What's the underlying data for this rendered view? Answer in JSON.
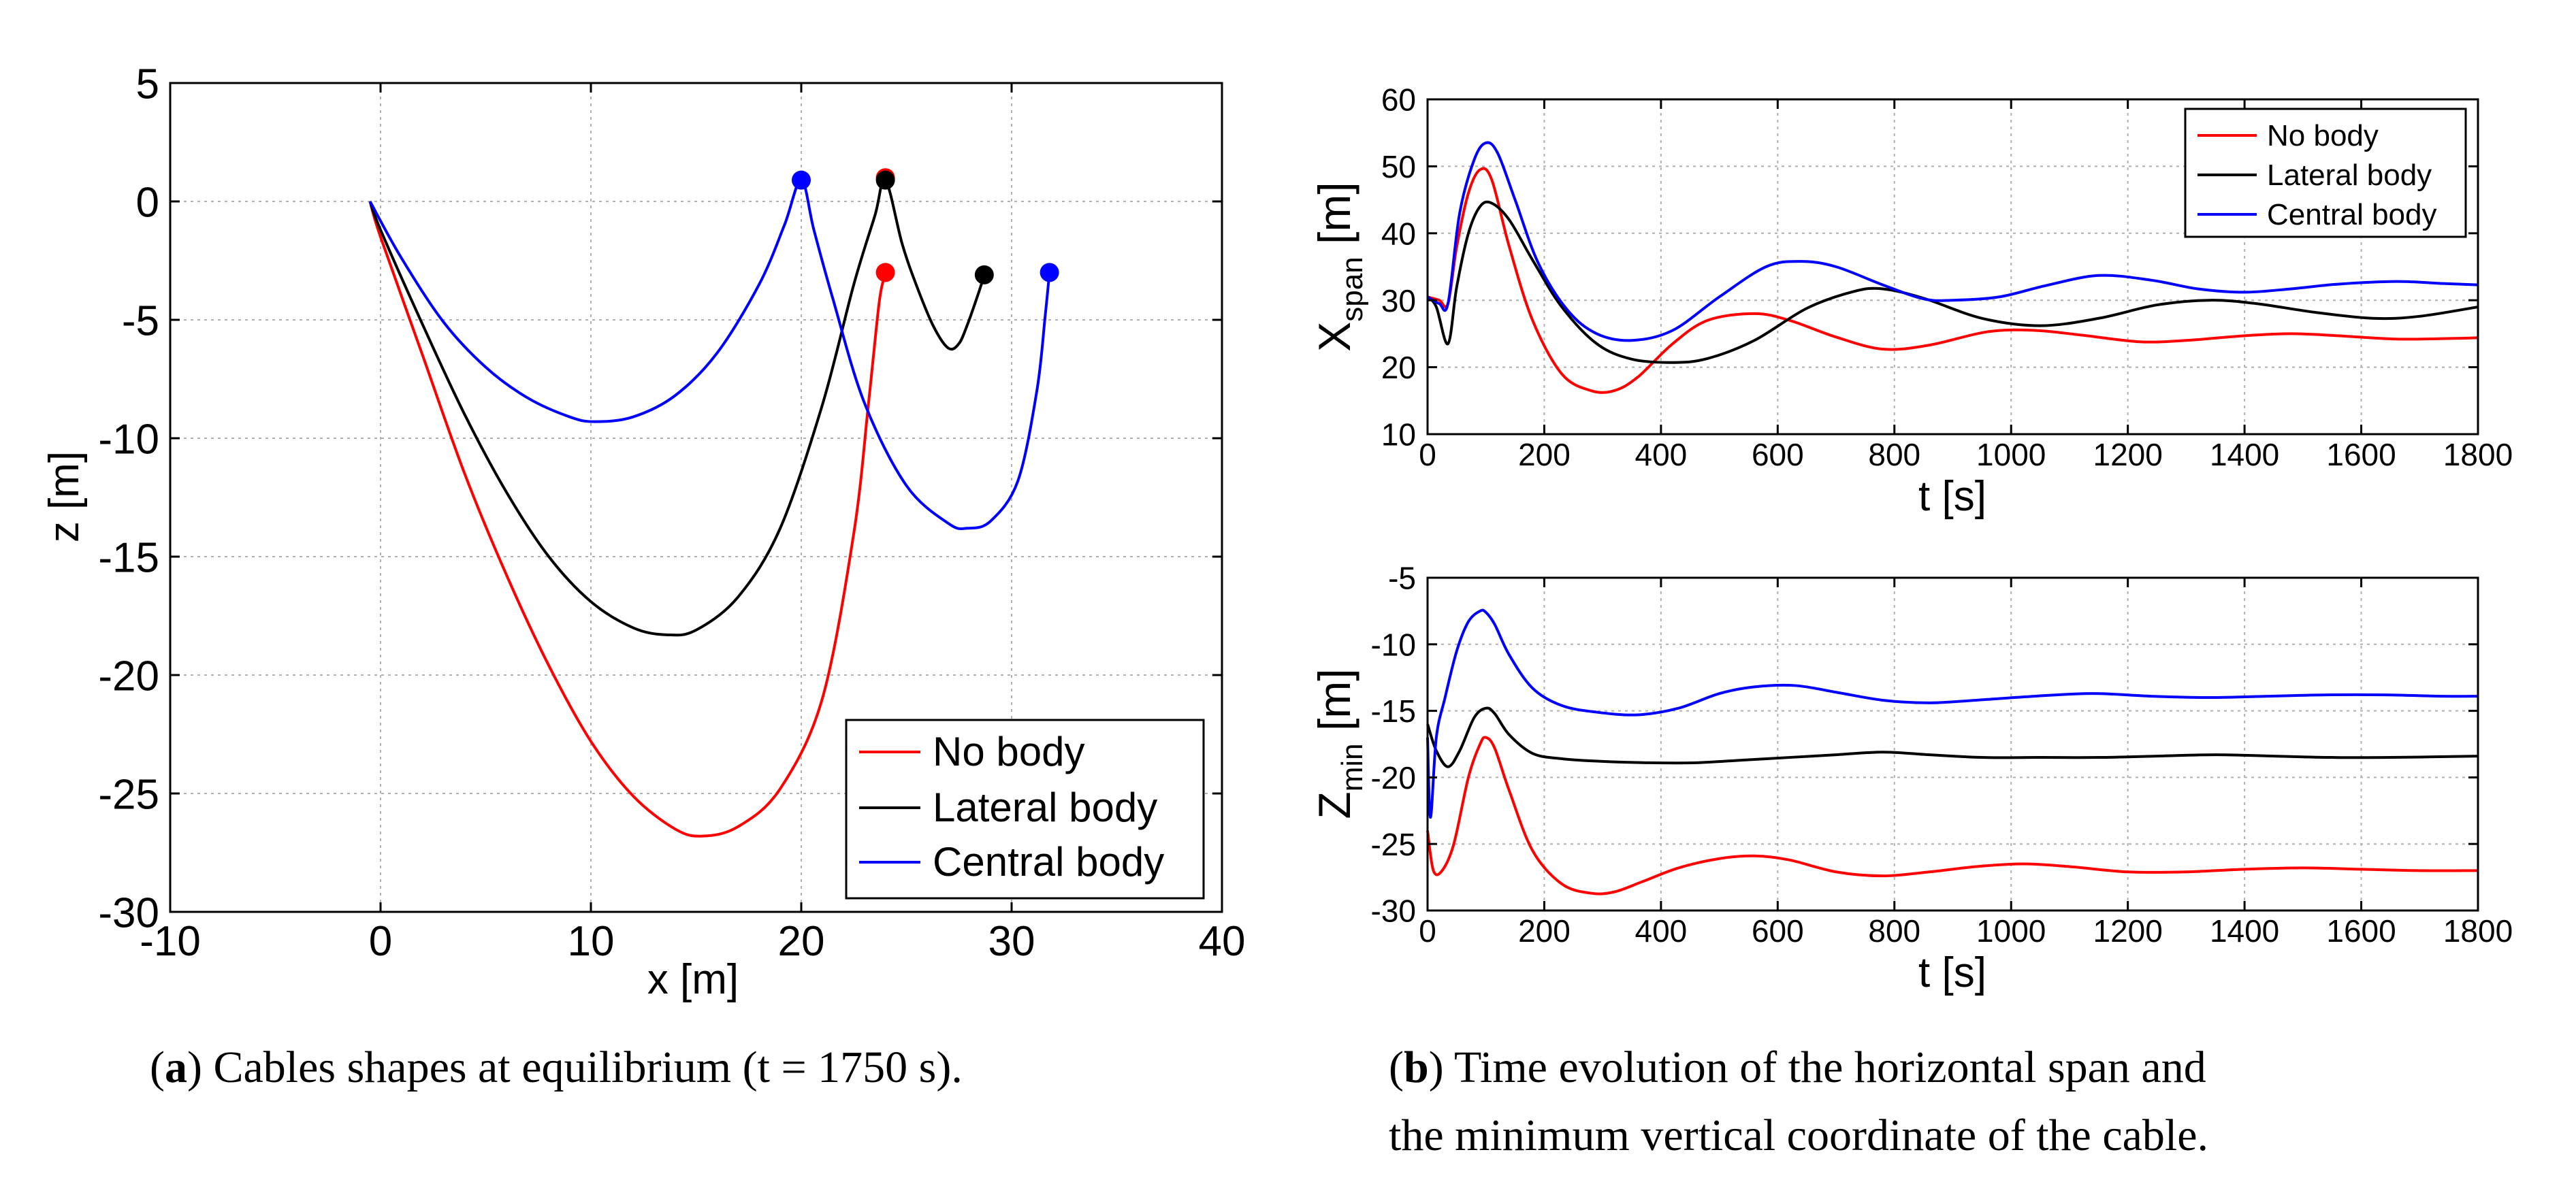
{
  "colors": {
    "no_body": "#ff0000",
    "lateral_body": "#000000",
    "central_body": "#0000ff",
    "grid": "#b0b0b0"
  },
  "captions": {
    "a_label": "(a)",
    "a_letter": "a",
    "a_text": "Cables shapes at equilibrium (t = 1750 s).",
    "b_letter": "b",
    "b_line1": "Time evolution of the horizontal span and",
    "b_line2": "the minimum vertical coordinate of the cable."
  },
  "chart_data": [
    {
      "id": "cable_shapes",
      "type": "line",
      "title": "",
      "xlabel": "x [m]",
      "ylabel": "z [m]",
      "xlim": [
        -10,
        40
      ],
      "ylim": [
        -30,
        5
      ],
      "xticks": [
        -10,
        0,
        10,
        20,
        30,
        40
      ],
      "yticks": [
        -30,
        -25,
        -20,
        -15,
        -10,
        -5,
        0,
        5
      ],
      "grid": true,
      "legend_position": "bottom-right",
      "series": [
        {
          "name": "No body",
          "color": "#ff0000",
          "x": [
            -0.5,
            0,
            2,
            4,
            6,
            8,
            10,
            12,
            14,
            15.3,
            17,
            19,
            21,
            22.5,
            23.2,
            23.7,
            23.95,
            24.0,
            24.02
          ],
          "y": [
            0,
            -1.5,
            -6.5,
            -11.5,
            -15.8,
            -19.6,
            -22.8,
            -25.1,
            -26.5,
            -26.8,
            -26.4,
            -24.8,
            -21.0,
            -14.0,
            -8.5,
            -4.3,
            -3.2,
            -3.1,
            -3.0
          ],
          "endpoints": [
            {
              "x": 24.0,
              "y": 1.0
            },
            {
              "x": 24.0,
              "y": -3.0
            }
          ]
        },
        {
          "name": "Lateral body",
          "color": "#000000",
          "x": [
            -0.5,
            0,
            2,
            4,
            6,
            8,
            10,
            12,
            13.6,
            15,
            17,
            19,
            21,
            22.5,
            23.5,
            24.0,
            24.8,
            25.5,
            26.3,
            27.0,
            27.5,
            27.9,
            28.3,
            28.6,
            28.7
          ],
          "y": [
            0,
            -1.2,
            -5.2,
            -9.0,
            -12.3,
            -15.0,
            -16.9,
            -18.0,
            -18.3,
            -18.1,
            -16.7,
            -13.8,
            -8.6,
            -3.5,
            -0.6,
            0.9,
            -1.8,
            -3.6,
            -5.3,
            -6.2,
            -6.0,
            -5.2,
            -4.2,
            -3.4,
            -3.1
          ],
          "endpoints": [
            {
              "x": 24.0,
              "y": 0.9
            },
            {
              "x": 28.7,
              "y": -3.1
            }
          ]
        },
        {
          "name": "Central body",
          "color": "#0000ff",
          "x": [
            -0.5,
            1,
            3,
            5,
            7,
            9,
            10.2,
            12,
            14,
            16,
            18,
            19.2,
            20.0,
            20.6,
            21.5,
            23,
            25,
            27,
            27.9,
            29,
            30.3,
            31.2,
            31.6,
            31.8
          ],
          "y": [
            0,
            -2.4,
            -5.1,
            -7.0,
            -8.3,
            -9.1,
            -9.3,
            -9.1,
            -8.2,
            -6.4,
            -3.5,
            -1.0,
            0.9,
            -1.2,
            -4.1,
            -8.5,
            -12.0,
            -13.6,
            -13.8,
            -13.5,
            -11.8,
            -8.0,
            -4.8,
            -3.0
          ],
          "endpoints": [
            {
              "x": 20.0,
              "y": 0.9
            },
            {
              "x": 31.8,
              "y": -3.0
            }
          ]
        }
      ]
    },
    {
      "id": "x_span",
      "type": "line",
      "title": "",
      "xlabel": "t [s]",
      "ylabel": "X",
      "ylabel_sub": "span",
      "ylabel_unit": " [m]",
      "xlim": [
        0,
        1800
      ],
      "ylim": [
        10,
        60
      ],
      "xticks": [
        0,
        200,
        400,
        600,
        800,
        1000,
        1200,
        1400,
        1600,
        1800
      ],
      "yticks": [
        10,
        20,
        30,
        40,
        50,
        60
      ],
      "grid": true,
      "legend_position": "top-right",
      "series": [
        {
          "name": "No body",
          "color": "#ff0000",
          "x": [
            0,
            20,
            35,
            50,
            70,
            90,
            110,
            140,
            180,
            230,
            280,
            320,
            360,
            420,
            480,
            560,
            620,
            700,
            780,
            860,
            960,
            1040,
            1120,
            1220,
            1300,
            1400,
            1480,
            1560,
            1660,
            1760,
            1800
          ],
          "y": [
            30.5,
            30,
            29.5,
            38,
            46,
            49.5,
            48,
            38,
            27,
            19,
            16.5,
            16.5,
            18.5,
            23.5,
            27,
            28,
            27,
            24.5,
            22.7,
            23.3,
            25.3,
            25.5,
            24.8,
            23.8,
            24,
            24.7,
            25,
            24.7,
            24.2,
            24.3,
            24.4
          ]
        },
        {
          "name": "Lateral body",
          "color": "#000000",
          "x": [
            0,
            15,
            35,
            50,
            70,
            90,
            110,
            140,
            180,
            230,
            290,
            350,
            420,
            480,
            560,
            650,
            730,
            780,
            850,
            950,
            1050,
            1150,
            1250,
            1340,
            1420,
            1520,
            1620,
            1700,
            1800
          ],
          "y": [
            30.5,
            29,
            23.5,
            32,
            40,
            44,
            44.5,
            42,
            36,
            29,
            23.5,
            21.2,
            20.7,
            21.3,
            24,
            28.8,
            31.3,
            31.7,
            30.3,
            27.3,
            26.2,
            27.3,
            29.3,
            30,
            29.5,
            28.2,
            27.3,
            27.6,
            29
          ]
        },
        {
          "name": "Central body",
          "color": "#0000ff",
          "x": [
            0,
            20,
            35,
            55,
            80,
            100,
            120,
            150,
            190,
            240,
            290,
            350,
            420,
            500,
            580,
            640,
            700,
            780,
            850,
            900,
            980,
            1060,
            1150,
            1240,
            1320,
            1400,
            1480,
            1560,
            1660,
            1740,
            1800
          ],
          "y": [
            30.5,
            29.5,
            29.5,
            43,
            51,
            53.5,
            52,
            45,
            35.5,
            28.5,
            25,
            24,
            25.5,
            30.5,
            35,
            35.8,
            35,
            32.3,
            30.2,
            30,
            30.5,
            32.2,
            33.7,
            33,
            31.7,
            31.2,
            31.7,
            32.4,
            32.8,
            32.5,
            32.3
          ]
        }
      ]
    },
    {
      "id": "z_min",
      "type": "line",
      "title": "",
      "xlabel": "t [s]",
      "ylabel": "Z",
      "ylabel_sub": "min",
      "ylabel_unit": " [m]",
      "xlim": [
        0,
        1800
      ],
      "ylim": [
        -30,
        -5
      ],
      "xticks": [
        0,
        200,
        400,
        600,
        800,
        1000,
        1200,
        1400,
        1600,
        1800
      ],
      "yticks": [
        -30,
        -25,
        -20,
        -15,
        -10,
        -5
      ],
      "grid": true,
      "legend_position": "none",
      "series": [
        {
          "name": "No body",
          "color": "#ff0000",
          "x": [
            0,
            10,
            25,
            45,
            70,
            90,
            100,
            115,
            140,
            180,
            230,
            280,
            320,
            370,
            430,
            500,
            560,
            620,
            700,
            780,
            860,
            940,
            1020,
            1100,
            1200,
            1300,
            1400,
            1500,
            1600,
            1700,
            1800
          ],
          "y": [
            -24,
            -27,
            -27,
            -25,
            -20,
            -17.5,
            -17,
            -17.8,
            -21,
            -25.5,
            -28,
            -28.7,
            -28.6,
            -27.8,
            -26.8,
            -26.1,
            -25.9,
            -26.2,
            -27.1,
            -27.4,
            -27.1,
            -26.7,
            -26.5,
            -26.7,
            -27.1,
            -27.1,
            -26.9,
            -26.8,
            -26.9,
            -27,
            -27
          ]
        },
        {
          "name": "Lateral body",
          "color": "#000000",
          "x": [
            0,
            15,
            35,
            55,
            80,
            100,
            115,
            140,
            180,
            230,
            300,
            380,
            460,
            540,
            620,
            700,
            780,
            860,
            950,
            1050,
            1150,
            1250,
            1350,
            1450,
            1550,
            1650,
            1800
          ],
          "y": [
            -16,
            -18,
            -19.2,
            -18,
            -15.5,
            -14.8,
            -15.2,
            -16.8,
            -18.2,
            -18.6,
            -18.8,
            -18.9,
            -18.9,
            -18.7,
            -18.5,
            -18.3,
            -18.1,
            -18.3,
            -18.5,
            -18.5,
            -18.5,
            -18.4,
            -18.3,
            -18.4,
            -18.5,
            -18.5,
            -18.4
          ]
        },
        {
          "name": "Central body",
          "color": "#0000ff",
          "x": [
            0,
            5,
            15,
            30,
            50,
            70,
            90,
            100,
            115,
            140,
            180,
            230,
            290,
            360,
            430,
            500,
            560,
            630,
            700,
            780,
            860,
            940,
            1040,
            1140,
            1240,
            1340,
            1440,
            1540,
            1640,
            1740,
            1800
          ],
          "y": [
            -17,
            -23,
            -17,
            -14,
            -10.5,
            -8.3,
            -7.5,
            -7.6,
            -8.5,
            -10.8,
            -13.3,
            -14.6,
            -15.1,
            -15.3,
            -14.8,
            -13.7,
            -13.2,
            -13.1,
            -13.6,
            -14.2,
            -14.4,
            -14.2,
            -13.9,
            -13.7,
            -13.9,
            -14,
            -13.9,
            -13.8,
            -13.8,
            -13.9,
            -13.9
          ]
        }
      ]
    }
  ]
}
